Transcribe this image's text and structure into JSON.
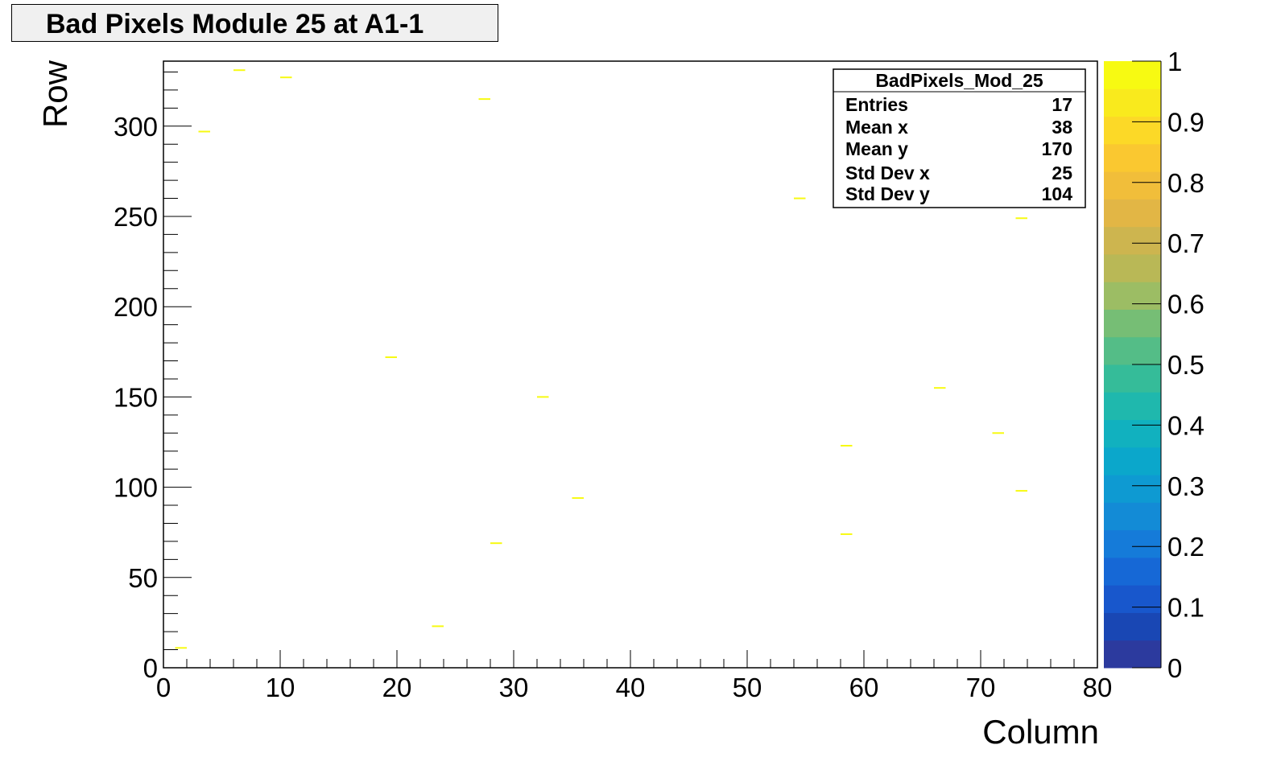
{
  "title": "Bad Pixels Module 25 at A1-1",
  "chart_data": {
    "type": "heatmap",
    "title": "Bad Pixels Module 25 at A1-1",
    "xlabel": "Column",
    "ylabel": "Row",
    "xlim": [
      0,
      80
    ],
    "ylim": [
      0,
      336
    ],
    "x_ticks": [
      0,
      10,
      20,
      30,
      40,
      50,
      60,
      70,
      80
    ],
    "y_ticks": [
      0,
      50,
      100,
      150,
      200,
      250,
      300
    ],
    "z_range": [
      0,
      1
    ],
    "z_ticks": [
      0,
      0.1,
      0.2,
      0.3,
      0.4,
      0.5,
      0.6,
      0.7,
      0.8,
      0.9,
      1
    ],
    "palette": [
      "#2c3a9e",
      "#1947b4",
      "#1857cc",
      "#1668d6",
      "#157bd9",
      "#138bd6",
      "#0e9ad2",
      "#0ba7cb",
      "#11b1bf",
      "#1fb8ad",
      "#35bc99",
      "#54bd87",
      "#76be75",
      "#9cbd64",
      "#b9b856",
      "#cdb54f",
      "#e2b645",
      "#f1be3a",
      "#fac830",
      "#fcd927",
      "#f9ea1d",
      "#f7fa12"
    ],
    "points": [
      {
        "x": 1,
        "y": 11,
        "value": 1
      },
      {
        "x": 3,
        "y": 297,
        "value": 1
      },
      {
        "x": 6,
        "y": 331,
        "value": 1
      },
      {
        "x": 10,
        "y": 327,
        "value": 1
      },
      {
        "x": 19,
        "y": 172,
        "value": 1
      },
      {
        "x": 23,
        "y": 23,
        "value": 1
      },
      {
        "x": 27,
        "y": 315,
        "value": 1
      },
      {
        "x": 28,
        "y": 69,
        "value": 1
      },
      {
        "x": 32,
        "y": 150,
        "value": 1
      },
      {
        "x": 35,
        "y": 94,
        "value": 1
      },
      {
        "x": 54,
        "y": 260,
        "value": 1
      },
      {
        "x": 58,
        "y": 123,
        "value": 1
      },
      {
        "x": 58,
        "y": 74,
        "value": 1
      },
      {
        "x": 66,
        "y": 155,
        "value": 1
      },
      {
        "x": 71,
        "y": 130,
        "value": 1
      },
      {
        "x": 73,
        "y": 249,
        "value": 1
      },
      {
        "x": 73,
        "y": 98,
        "value": 1
      }
    ],
    "stats": {
      "name": "BadPixels_Mod_25",
      "rows": [
        {
          "label": "Entries",
          "value": "17"
        },
        {
          "label": "Mean x",
          "value": "38"
        },
        {
          "label": "Mean y",
          "value": "170"
        },
        {
          "label": "Std Dev x",
          "value": "25"
        },
        {
          "label": "Std Dev y",
          "value": "104"
        }
      ]
    }
  }
}
